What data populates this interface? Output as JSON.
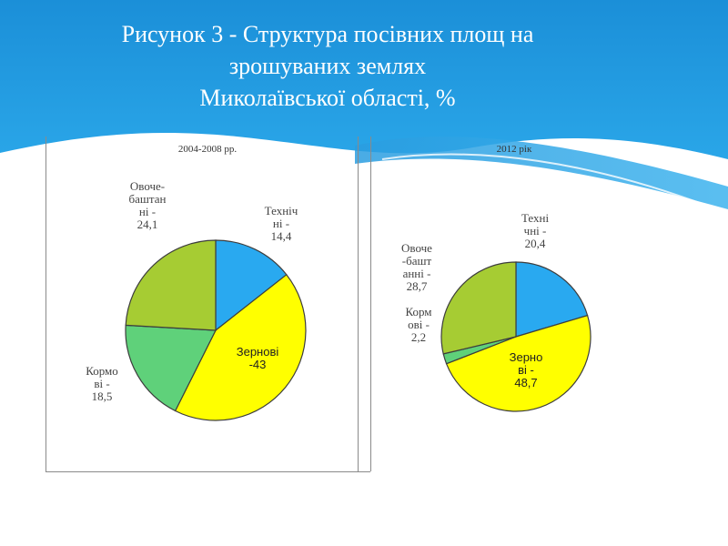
{
  "slide": {
    "title_lines": [
      "Рисунок 3 - Структура посівних площ на",
      "зрошуваних землях",
      "Миколаївської області, %"
    ]
  },
  "colors": {
    "header_blue": "#1a8fd6",
    "tech": "#29a9f0",
    "grain": "#ffff00",
    "fodder": "#5fd17a",
    "veg": "#a6cc33",
    "outline": "#3d3d3d"
  },
  "chart_data": [
    {
      "type": "pie",
      "title": "2004-2008 рр.",
      "slices": [
        {
          "name": "Технічні",
          "value": 14.4,
          "label_lines": [
            "Техніч",
            "ні -",
            "14,4"
          ],
          "color": "#29a9f0"
        },
        {
          "name": "Зернові",
          "value": 43,
          "label_lines": [
            "Зернові",
            "-43"
          ],
          "color": "#ffff00"
        },
        {
          "name": "Кормові",
          "value": 18.5,
          "label_lines": [
            "Кормо",
            "ві -",
            "18,5"
          ],
          "color": "#5fd17a"
        },
        {
          "name": "Овоче-баштанні",
          "value": 24.1,
          "label_lines": [
            "Овоче-",
            "баштан",
            "ні -",
            "24,1"
          ],
          "color": "#a6cc33"
        }
      ]
    },
    {
      "type": "pie",
      "title": "2012 рік",
      "slices": [
        {
          "name": "Технічні",
          "value": 20.4,
          "label_lines": [
            "Техні",
            "чні -",
            "20,4"
          ],
          "color": "#29a9f0"
        },
        {
          "name": "Зернові",
          "value": 48.7,
          "label_lines": [
            "Зерно",
            "ві -",
            "48,7"
          ],
          "color": "#ffff00"
        },
        {
          "name": "Кормові",
          "value": 2.2,
          "label_lines": [
            "Корм",
            "ові -",
            "2,2"
          ],
          "color": "#5fd17a"
        },
        {
          "name": "Овоче-баштанні",
          "value": 28.7,
          "label_lines": [
            "Овоче",
            "-башт",
            "анні -",
            "28,7"
          ],
          "color": "#a6cc33"
        }
      ]
    }
  ]
}
